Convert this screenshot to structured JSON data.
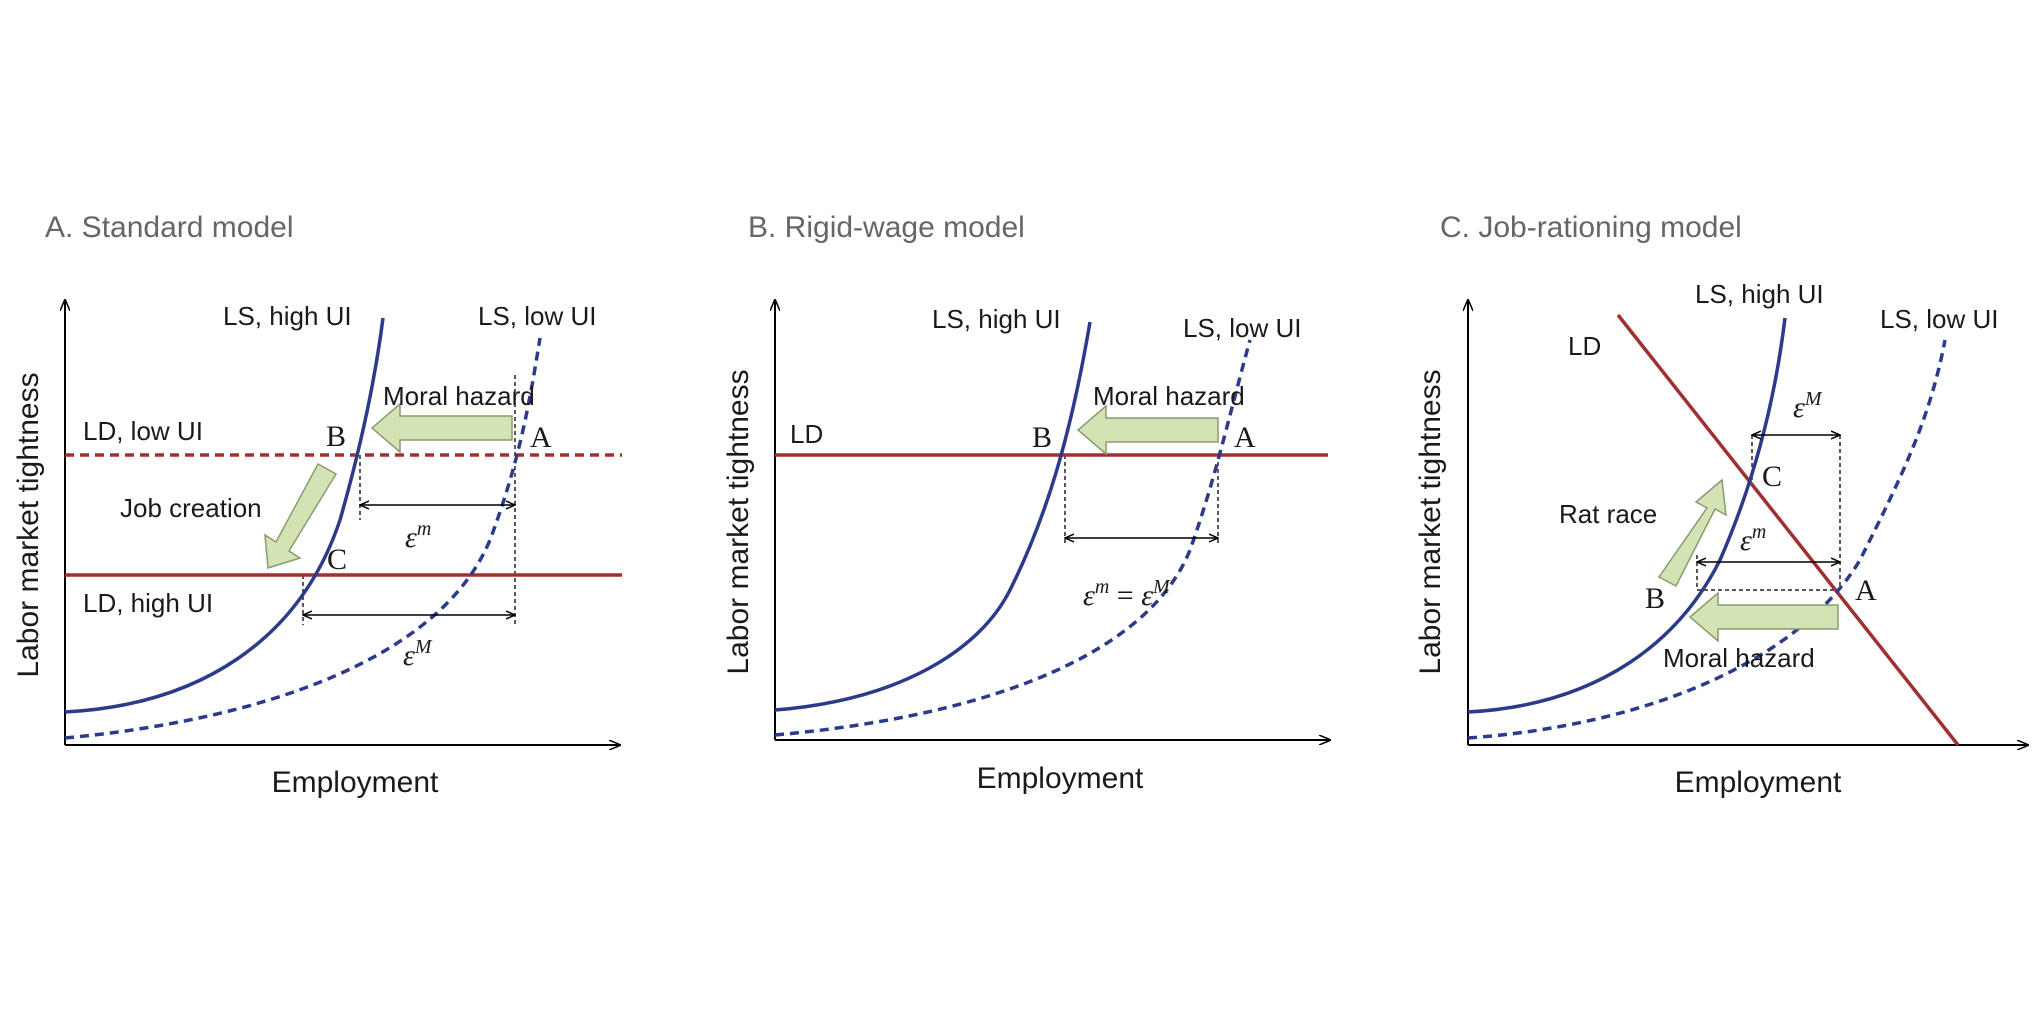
{
  "colors": {
    "labor_supply": "#2c3a8c",
    "labor_demand": "#a03030",
    "arrow_fill": "#d2e4b4",
    "title": "#666666"
  },
  "panels": [
    {
      "title": "A. Standard model",
      "y_axis_label": "Labor market tightness",
      "x_axis_label": "Employment",
      "ls_high": "LS, high UI",
      "ls_low": "LS, low UI",
      "ld_low": "LD, low UI",
      "ld_high": "LD, high UI",
      "moral_hazard": "Moral hazard",
      "job_creation": "Job creation",
      "point_a": "A",
      "point_b": "B",
      "point_c": "C",
      "eps_micro_base": "ε",
      "eps_micro_sup": "m",
      "eps_macro_base": "ε",
      "eps_macro_sup": "M"
    },
    {
      "title": "B. Rigid-wage model",
      "y_axis_label": "Labor market tightness",
      "x_axis_label": "Employment",
      "ls_high": "LS,  high UI",
      "ls_low": "LS, low UI",
      "ld": "LD",
      "moral_hazard": "Moral hazard",
      "point_a": "A",
      "point_b": "B",
      "eps_left_base": "ε",
      "eps_left_sup": "m",
      "eps_equals": " = ",
      "eps_right_base": "ε",
      "eps_right_sup": "M"
    },
    {
      "title": "C. Job-rationing model",
      "y_axis_label": "Labor market tightness",
      "x_axis_label": "Employment",
      "ls_high": "LS, high UI",
      "ls_low": "LS, low UI",
      "ld": "LD",
      "moral_hazard": "Moral hazard",
      "rat_race": "Rat race",
      "point_a": "A",
      "point_b": "B",
      "point_c": "C",
      "eps_macro_base": "ε",
      "eps_macro_sup": "M",
      "eps_micro_base": "ε",
      "eps_micro_sup": "m"
    }
  ]
}
